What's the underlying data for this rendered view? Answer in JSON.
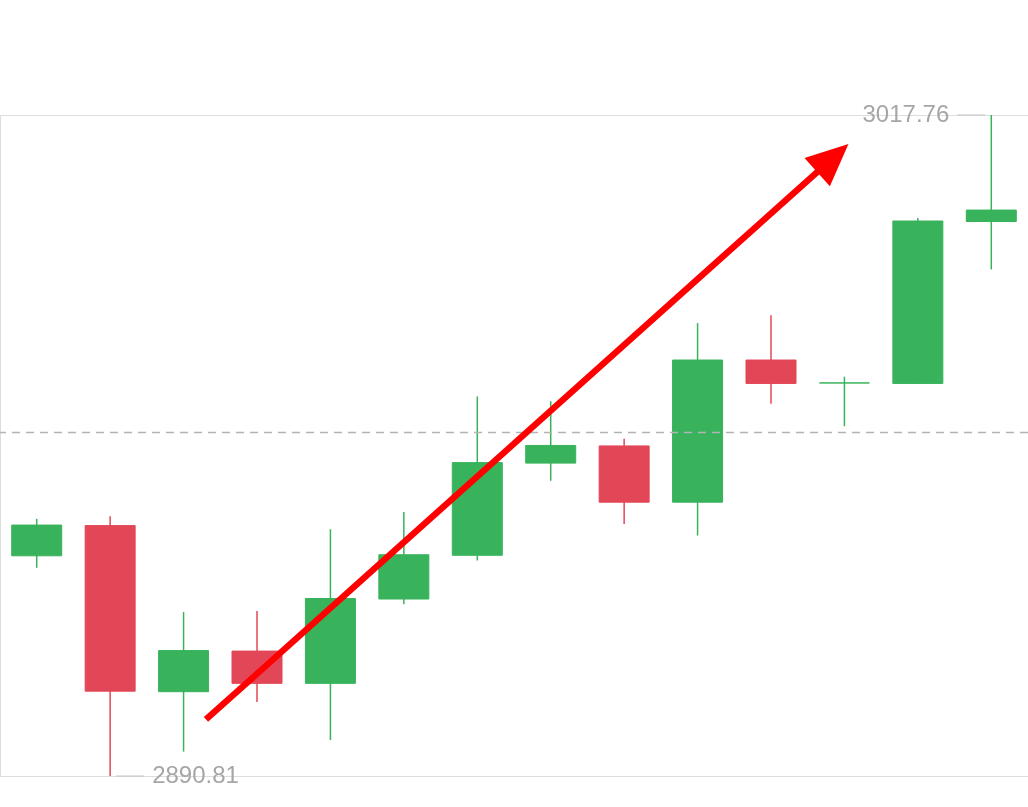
{
  "chart_data": {
    "type": "candlestick",
    "categories": [
      null,
      null,
      null,
      null,
      null,
      null,
      null,
      null,
      null,
      null,
      null,
      null,
      null,
      null
    ],
    "ohlc": [
      [
        2933.1,
        2940.2,
        2930.8,
        2939.0
      ],
      [
        2938.9,
        2940.7,
        2890.81,
        2907.1
      ],
      [
        2907.0,
        2922.3,
        2895.5,
        2914.9
      ],
      [
        2914.8,
        2922.5,
        2905.0,
        2908.6
      ],
      [
        2908.6,
        2938.2,
        2897.7,
        2924.9
      ],
      [
        2924.8,
        2941.5,
        2923.8,
        2933.3
      ],
      [
        2933.2,
        2963.7,
        2932.2,
        2951.0
      ],
      [
        2950.9,
        2962.8,
        2947.5,
        2954.3
      ],
      [
        2954.2,
        2955.6,
        2939.2,
        2943.4
      ],
      [
        2943.4,
        2977.8,
        2937.0,
        2970.7
      ],
      [
        2970.7,
        2979.3,
        2962.3,
        2966.2
      ],
      [
        2966.3,
        2967.5,
        2958.0,
        2966.3
      ],
      [
        2966.2,
        2998.0,
        2966.2,
        2997.4
      ],
      [
        2997.3,
        3017.76,
        2988.1,
        2999.5
      ]
    ],
    "colors": [
      "#38b35c",
      "#e24757",
      "#38b35c",
      "#e24757",
      "#38b35c",
      "#38b35c",
      "#38b35c",
      "#38b35c",
      "#e24757",
      "#38b35c",
      "#e24757",
      "#38b35c",
      "#38b35c",
      "#38b35c"
    ],
    "ref_lines": [
      {
        "axis": "y",
        "value": 2956.8,
        "color": "#b3b3b3",
        "line_style": "dashed"
      }
    ],
    "annotations": [
      "3017.76",
      "2890.81"
    ],
    "tick_labels": false
  }
}
